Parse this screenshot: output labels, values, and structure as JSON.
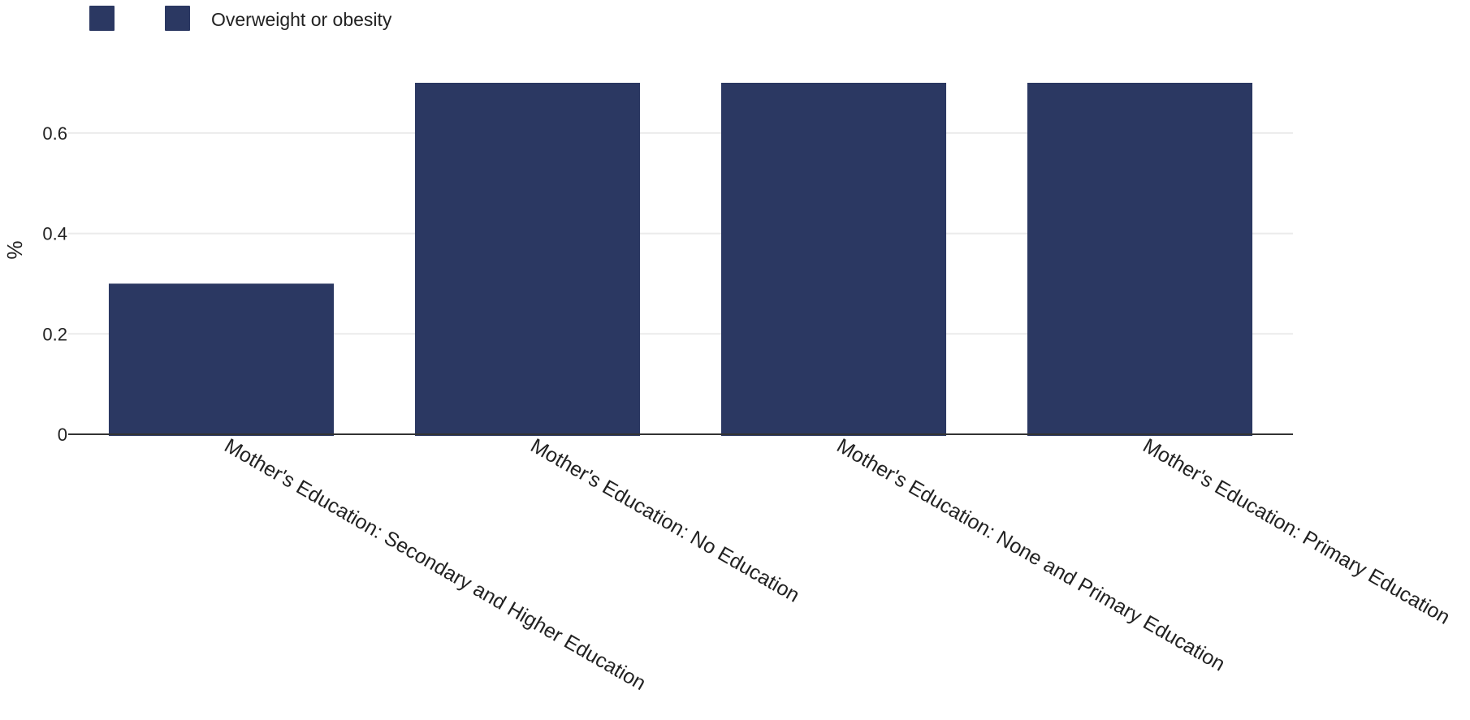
{
  "colors": {
    "bar": "#2b3862",
    "grid": "#ebebeb",
    "axis": "#333333"
  },
  "legend": {
    "items": [
      {
        "label": ""
      },
      {
        "label": "Overweight or obesity"
      }
    ]
  },
  "chart_data": {
    "type": "bar",
    "categories": [
      "Mother's Education: Secondary and Higher Education",
      "Mother's Education: No Education",
      "Mother's Education: None and Primary Education",
      "Mother's Education: Primary Education"
    ],
    "series": [
      {
        "name": "Overweight or obesity",
        "values": [
          0.3,
          0.7,
          0.7,
          0.7
        ]
      }
    ],
    "ylabel": "%",
    "xlabel": "",
    "ylim": [
      0,
      0.7
    ],
    "yticks": [
      0,
      0.2,
      0.4,
      0.6
    ],
    "ytick_labels": [
      "0",
      "0.2",
      "0.4",
      "0.6"
    ],
    "grid": true,
    "legend_position": "top-left"
  }
}
